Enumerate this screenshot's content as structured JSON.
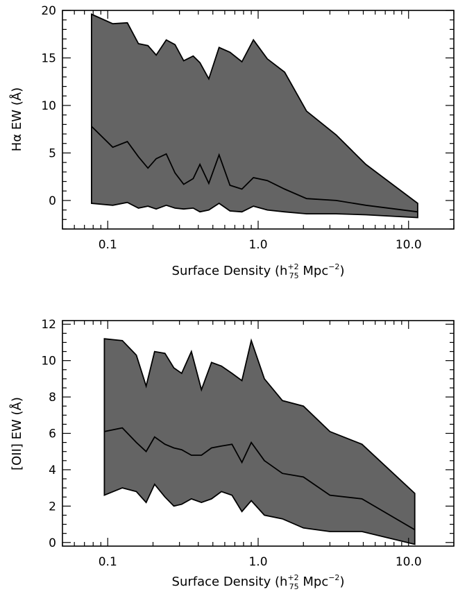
{
  "chart_data": [
    {
      "type": "area",
      "xscale": "log",
      "xlim": [
        0.05,
        20
      ],
      "ylim": [
        -3,
        20
      ],
      "xticks": [
        0.1,
        1.0,
        10.0
      ],
      "xtick_labels": [
        "0.1",
        "1.0",
        "10.0"
      ],
      "yticks": [
        0,
        5,
        10,
        15,
        20
      ],
      "ytick_labels": [
        "0",
        "5",
        "10",
        "15",
        "20"
      ],
      "xlabel": {
        "base": "Surface Density (h",
        "sup": "+2",
        "sub": "75",
        "unit": " Mpc",
        "unit_sup": "−2",
        "close": ")"
      },
      "ylabel": "Hα EW (Å)",
      "upper": {
        "x": [
          0.078,
          0.108,
          0.135,
          0.16,
          0.185,
          0.21,
          0.245,
          0.28,
          0.32,
          0.37,
          0.41,
          0.47,
          0.55,
          0.65,
          0.78,
          0.93,
          1.15,
          1.5,
          2.1,
          3.3,
          5.2,
          11.5
        ],
        "y": [
          19.6,
          18.6,
          18.7,
          16.5,
          16.3,
          15.3,
          16.9,
          16.4,
          14.7,
          15.2,
          14.5,
          12.8,
          16.1,
          15.6,
          14.6,
          16.9,
          14.9,
          13.5,
          9.4,
          6.9,
          3.8,
          -0.3
        ]
      },
      "median": {
        "x": [
          0.078,
          0.108,
          0.135,
          0.16,
          0.185,
          0.21,
          0.245,
          0.28,
          0.32,
          0.37,
          0.41,
          0.47,
          0.55,
          0.65,
          0.78,
          0.93,
          1.15,
          1.5,
          2.1,
          3.3,
          5.2,
          11.5
        ],
        "y": [
          7.8,
          5.6,
          6.2,
          4.6,
          3.4,
          4.4,
          4.9,
          2.9,
          1.7,
          2.3,
          3.8,
          1.8,
          4.8,
          1.6,
          1.2,
          2.4,
          2.1,
          1.2,
          0.2,
          0.0,
          -0.5,
          -1.2
        ]
      },
      "lower": {
        "x": [
          0.078,
          0.108,
          0.135,
          0.16,
          0.185,
          0.21,
          0.245,
          0.28,
          0.32,
          0.37,
          0.41,
          0.47,
          0.55,
          0.65,
          0.78,
          0.93,
          1.15,
          1.5,
          2.1,
          3.3,
          5.2,
          11.5
        ],
        "y": [
          -0.3,
          -0.5,
          -0.2,
          -0.8,
          -0.6,
          -0.9,
          -0.5,
          -0.8,
          -0.9,
          -0.8,
          -1.2,
          -1.0,
          -0.3,
          -1.1,
          -1.2,
          -0.6,
          -1.0,
          -1.2,
          -1.4,
          -1.4,
          -1.5,
          -1.8
        ]
      }
    },
    {
      "type": "area",
      "xscale": "log",
      "xlim": [
        0.05,
        20
      ],
      "ylim": [
        -0.2,
        12.2
      ],
      "xticks": [
        0.1,
        1.0,
        10.0
      ],
      "xtick_labels": [
        "0.1",
        "1.0",
        "10.0"
      ],
      "yticks": [
        0,
        2,
        4,
        6,
        8,
        10,
        12
      ],
      "ytick_labels": [
        "0",
        "2",
        "4",
        "6",
        "8",
        "10",
        "12"
      ],
      "xlabel": {
        "base": "Surface Density (h",
        "sup": "+2",
        "sub": "75",
        "unit": " Mpc",
        "unit_sup": "−2",
        "close": ")"
      },
      "ylabel": "[OII] EW (Å)",
      "upper": {
        "x": [
          0.095,
          0.125,
          0.155,
          0.18,
          0.205,
          0.24,
          0.275,
          0.31,
          0.36,
          0.42,
          0.49,
          0.57,
          0.67,
          0.78,
          0.9,
          1.1,
          1.45,
          2.0,
          3.0,
          4.9,
          11.0
        ],
        "y": [
          11.2,
          11.1,
          10.3,
          8.6,
          10.5,
          10.4,
          9.6,
          9.3,
          10.5,
          8.4,
          9.9,
          9.7,
          9.3,
          8.9,
          11.1,
          9.0,
          7.8,
          7.5,
          6.1,
          5.4,
          2.7
        ]
      },
      "median": {
        "x": [
          0.095,
          0.125,
          0.155,
          0.18,
          0.205,
          0.24,
          0.275,
          0.31,
          0.36,
          0.42,
          0.49,
          0.57,
          0.67,
          0.78,
          0.9,
          1.1,
          1.45,
          2.0,
          3.0,
          4.9,
          11.0
        ],
        "y": [
          6.1,
          6.3,
          5.5,
          5.0,
          5.8,
          5.4,
          5.2,
          5.1,
          4.8,
          4.8,
          5.2,
          5.3,
          5.4,
          4.4,
          5.5,
          4.5,
          3.8,
          3.6,
          2.6,
          2.4,
          0.7
        ]
      },
      "lower": {
        "x": [
          0.095,
          0.125,
          0.155,
          0.18,
          0.205,
          0.24,
          0.275,
          0.31,
          0.36,
          0.42,
          0.49,
          0.57,
          0.67,
          0.78,
          0.9,
          1.1,
          1.45,
          2.0,
          3.0,
          4.9,
          11.0
        ],
        "y": [
          2.6,
          3.0,
          2.8,
          2.2,
          3.2,
          2.5,
          2.0,
          2.1,
          2.4,
          2.2,
          2.4,
          2.8,
          2.6,
          1.7,
          2.3,
          1.5,
          1.3,
          0.8,
          0.6,
          0.6,
          -0.1
        ]
      }
    }
  ]
}
